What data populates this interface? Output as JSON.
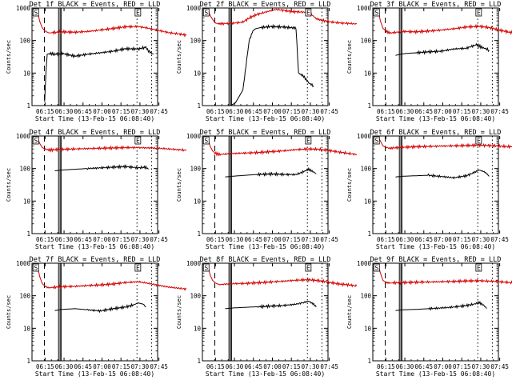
{
  "chart_data": [
    {
      "type": "line",
      "title": "Det 1f BLACK = Events, RED = LLD",
      "ylabel": "Counts/sec",
      "xlabel": "Start Time (13-Feb-15 06:08:40)",
      "xticks": [
        "06:15",
        "06:30",
        "06:45",
        "07:00",
        "07:15",
        "07:30",
        "07:45"
      ],
      "yticks": [
        "1",
        "10",
        "100",
        "1000"
      ],
      "ylim": [
        1,
        1000
      ],
      "y_scale": "log",
      "markers": [
        "S",
        "E"
      ],
      "series": [
        {
          "color": "#d40000",
          "x": [
            0,
            2,
            4,
            6,
            8,
            10,
            12,
            20,
            30,
            40,
            50,
            60,
            70,
            80,
            88,
            96,
            104,
            112,
            118
          ],
          "values": [
            1000,
            400,
            250,
            200,
            180,
            170,
            175,
            185,
            180,
            190,
            210,
            235,
            265,
            270,
            240,
            205,
            175,
            160,
            145
          ]
        },
        {
          "color": "#000000",
          "x": [
            6,
            7,
            8,
            10,
            14,
            20,
            30,
            40,
            50,
            60,
            70,
            80,
            86,
            88,
            90,
            92
          ],
          "values": [
            1.3,
            10,
            38,
            40,
            38,
            40,
            33,
            38,
            42,
            47,
            56,
            55,
            62,
            48,
            42,
            38
          ]
        }
      ]
    },
    {
      "type": "line",
      "title": "Det 2f BLACK = Events, RED = LLD",
      "ylabel": "Counts/sec",
      "xlabel": "Start Time (13-Feb-15 06:08:40)",
      "xticks": [
        "06:15",
        "06:30",
        "06:45",
        "07:00",
        "07:15",
        "07:30",
        "07:45"
      ],
      "yticks": [
        "1",
        "10",
        "100",
        "1000"
      ],
      "ylim": [
        1,
        1000
      ],
      "y_scale": "log",
      "markers": [
        "S",
        "E"
      ],
      "series": [
        {
          "color": "#d40000",
          "x": [
            0,
            2,
            4,
            6,
            8,
            10,
            12,
            20,
            28,
            34,
            40,
            46,
            54,
            60,
            66,
            72,
            78,
            82,
            86,
            90,
            96,
            104,
            112,
            118
          ],
          "values": [
            1000,
            600,
            450,
            350,
            330,
            330,
            330,
            340,
            370,
            520,
            650,
            750,
            900,
            850,
            780,
            760,
            740,
            650,
            470,
            420,
            380,
            350,
            335,
            325
          ]
        },
        {
          "color": "#000000",
          "x": [
            14,
            18,
            22,
            28,
            33,
            36,
            38,
            40,
            42,
            50,
            60,
            66,
            70,
            72,
            76,
            80,
            84
          ],
          "values": [
            1,
            1,
            1.2,
            3,
            100,
            200,
            230,
            240,
            250,
            270,
            260,
            250,
            240,
            10,
            8,
            5,
            4
          ]
        }
      ]
    },
    {
      "type": "line",
      "title": "Det 3f BLACK = Events, RED = LLD",
      "ylabel": "Counts/sec",
      "xlabel": "Start Time (13-Feb-15 06:08:40)",
      "xticks": [
        "06:15",
        "06:30",
        "06:45",
        "07:00",
        "07:15",
        "07:30",
        "07:45"
      ],
      "yticks": [
        "1",
        "10",
        "100",
        "1000"
      ],
      "ylim": [
        1,
        1000
      ],
      "y_scale": "log",
      "markers": [
        "S",
        "E"
      ],
      "series": [
        {
          "color": "#d40000",
          "x": [
            0,
            2,
            4,
            6,
            8,
            10,
            12,
            20,
            30,
            40,
            50,
            60,
            70,
            80,
            88,
            96,
            104,
            112,
            118
          ],
          "values": [
            1000,
            400,
            240,
            200,
            180,
            170,
            175,
            190,
            185,
            195,
            210,
            230,
            260,
            275,
            250,
            210,
            180,
            165,
            150
          ]
        },
        {
          "color": "#000000",
          "x": [
            14,
            18,
            22,
            30,
            40,
            50,
            60,
            70,
            78,
            82,
            86,
            88
          ],
          "values": [
            35,
            38,
            40,
            42,
            45,
            47,
            55,
            58,
            75,
            62,
            55,
            50
          ]
        }
      ]
    },
    {
      "type": "line",
      "title": "Det 4f BLACK = Events, RED = LLD",
      "ylabel": "Counts/sec",
      "xlabel": "Start Time (13-Feb-15 06:08:40)",
      "xticks": [
        "06:15",
        "06:30",
        "06:45",
        "07:00",
        "07:15",
        "07:30",
        "07:45"
      ],
      "yticks": [
        "1",
        "10",
        "100",
        "1000"
      ],
      "ylim": [
        1,
        1000
      ],
      "y_scale": "log",
      "markers": [
        "S",
        "E"
      ],
      "series": [
        {
          "color": "#d40000",
          "x": [
            0,
            2,
            4,
            6,
            8,
            10,
            12,
            20,
            30,
            40,
            50,
            60,
            70,
            80,
            88,
            96,
            104,
            112,
            118
          ],
          "values": [
            1000,
            600,
            450,
            400,
            380,
            370,
            375,
            390,
            400,
            410,
            420,
            430,
            440,
            440,
            430,
            420,
            400,
            380,
            360
          ]
        },
        {
          "color": "#000000",
          "x": [
            14,
            20,
            30,
            40,
            50,
            60,
            70,
            80,
            86,
            88
          ],
          "values": [
            85,
            90,
            95,
            100,
            105,
            110,
            115,
            105,
            110,
            95
          ]
        }
      ]
    },
    {
      "type": "line",
      "title": "Det 5f BLACK = Events, RED = LLD",
      "ylabel": "Counts/sec",
      "xlabel": "Start Time (13-Feb-15 06:08:40)",
      "xticks": [
        "06:15",
        "06:30",
        "06:45",
        "07:00",
        "07:15",
        "07:30",
        "07:45"
      ],
      "yticks": [
        "1",
        "10",
        "100",
        "1000"
      ],
      "ylim": [
        1,
        1000
      ],
      "y_scale": "log",
      "markers": [
        "S",
        "E"
      ],
      "series": [
        {
          "color": "#d40000",
          "x": [
            0,
            2,
            4,
            6,
            8,
            10,
            12,
            20,
            30,
            40,
            50,
            60,
            70,
            80,
            88,
            96,
            104,
            112,
            118
          ],
          "values": [
            1000,
            500,
            350,
            300,
            280,
            270,
            275,
            290,
            300,
            310,
            330,
            350,
            380,
            400,
            390,
            360,
            320,
            290,
            270
          ]
        },
        {
          "color": "#000000",
          "x": [
            14,
            20,
            30,
            40,
            50,
            60,
            70,
            76,
            80,
            84,
            86
          ],
          "values": [
            55,
            58,
            62,
            66,
            68,
            66,
            65,
            80,
            95,
            78,
            70
          ]
        }
      ]
    },
    {
      "type": "line",
      "title": "Det 6f BLACK = Events, RED = LLD",
      "ylabel": "Counts/sec",
      "xlabel": "Start Time (13-Feb-15 06:08:40)",
      "xticks": [
        "06:15",
        "06:30",
        "06:45",
        "07:00",
        "07:15",
        "07:30",
        "07:45"
      ],
      "yticks": [
        "1",
        "10",
        "100",
        "1000"
      ],
      "ylim": [
        1,
        1000
      ],
      "y_scale": "log",
      "markers": [
        "S",
        "E"
      ],
      "series": [
        {
          "color": "#d40000",
          "x": [
            0,
            2,
            4,
            6,
            8,
            10,
            12,
            20,
            30,
            40,
            50,
            60,
            70,
            80,
            88,
            96,
            104,
            112,
            118
          ],
          "values": [
            1000,
            700,
            500,
            450,
            430,
            420,
            430,
            450,
            470,
            480,
            490,
            500,
            510,
            520,
            510,
            490,
            470,
            460,
            450
          ]
        },
        {
          "color": "#000000",
          "x": [
            14,
            20,
            30,
            40,
            50,
            60,
            70,
            76,
            80,
            84,
            86,
            88
          ],
          "values": [
            55,
            58,
            60,
            62,
            57,
            52,
            60,
            75,
            90,
            80,
            70,
            58
          ]
        }
      ]
    },
    {
      "type": "line",
      "title": "Det 7f BLACK = Events, RED = LLD",
      "ylabel": "Counts/sec",
      "xlabel": "Start Time (13-Feb-15 06:08:40)",
      "xticks": [
        "06:15",
        "06:30",
        "06:45",
        "07:00",
        "07:15",
        "07:30",
        "07:45"
      ],
      "yticks": [
        "1",
        "10",
        "100",
        "1000"
      ],
      "ylim": [
        1,
        1000
      ],
      "y_scale": "log",
      "markers": [
        "S",
        "E"
      ],
      "series": [
        {
          "color": "#d40000",
          "x": [
            0,
            2,
            4,
            6,
            8,
            10,
            12,
            20,
            30,
            40,
            50,
            60,
            70,
            80,
            88,
            96,
            104,
            112,
            118
          ],
          "values": [
            1000,
            400,
            240,
            200,
            180,
            175,
            180,
            190,
            195,
            205,
            215,
            230,
            255,
            270,
            240,
            210,
            185,
            170,
            160
          ]
        },
        {
          "color": "#000000",
          "x": [
            14,
            20,
            30,
            40,
            50,
            60,
            70,
            76,
            80,
            84,
            86
          ],
          "values": [
            35,
            38,
            40,
            37,
            34,
            40,
            45,
            52,
            60,
            55,
            45
          ]
        }
      ]
    },
    {
      "type": "line",
      "title": "Det 8f BLACK = Events, RED = LLD",
      "ylabel": "Counts/sec",
      "xlabel": "Start Time (13-Feb-15 06:08:40)",
      "xticks": [
        "06:15",
        "06:30",
        "06:45",
        "07:00",
        "07:15",
        "07:30",
        "07:45"
      ],
      "yticks": [
        "1",
        "10",
        "100",
        "1000"
      ],
      "ylim": [
        1,
        1000
      ],
      "y_scale": "log",
      "markers": [
        "S",
        "E"
      ],
      "series": [
        {
          "color": "#d40000",
          "x": [
            0,
            2,
            4,
            6,
            8,
            10,
            12,
            20,
            30,
            40,
            50,
            60,
            70,
            80,
            88,
            96,
            104,
            112,
            118
          ],
          "values": [
            1000,
            450,
            300,
            250,
            230,
            220,
            225,
            235,
            240,
            250,
            265,
            280,
            300,
            310,
            290,
            260,
            230,
            215,
            200
          ]
        },
        {
          "color": "#000000",
          "x": [
            14,
            20,
            30,
            40,
            50,
            60,
            70,
            76,
            80,
            84,
            86
          ],
          "values": [
            40,
            42,
            44,
            46,
            48,
            50,
            55,
            62,
            68,
            55,
            45
          ]
        }
      ]
    },
    {
      "type": "line",
      "title": "Det 9f BLACK = Events, RED = LLD",
      "ylabel": "Counts/sec",
      "xlabel": "Start Time (13-Feb-15 06:08:40)",
      "xticks": [
        "06:15",
        "06:30",
        "06:45",
        "07:00",
        "07:15",
        "07:30",
        "07:45"
      ],
      "yticks": [
        "1",
        "10",
        "100",
        "1000"
      ],
      "ylim": [
        1,
        1000
      ],
      "y_scale": "log",
      "markers": [
        "S",
        "E"
      ],
      "series": [
        {
          "color": "#d40000",
          "x": [
            0,
            2,
            4,
            6,
            8,
            10,
            12,
            20,
            30,
            40,
            50,
            60,
            70,
            80,
            88,
            96,
            104,
            112,
            118
          ],
          "values": [
            1000,
            500,
            300,
            260,
            250,
            245,
            250,
            255,
            260,
            265,
            270,
            275,
            285,
            290,
            280,
            270,
            255,
            245,
            240
          ]
        },
        {
          "color": "#000000",
          "x": [
            14,
            20,
            30,
            40,
            50,
            60,
            70,
            76,
            80,
            84,
            86
          ],
          "values": [
            35,
            37,
            38,
            40,
            42,
            45,
            50,
            55,
            62,
            50,
            40
          ]
        }
      ]
    }
  ],
  "x_range_minutes": [
    -4,
    95.3
  ]
}
